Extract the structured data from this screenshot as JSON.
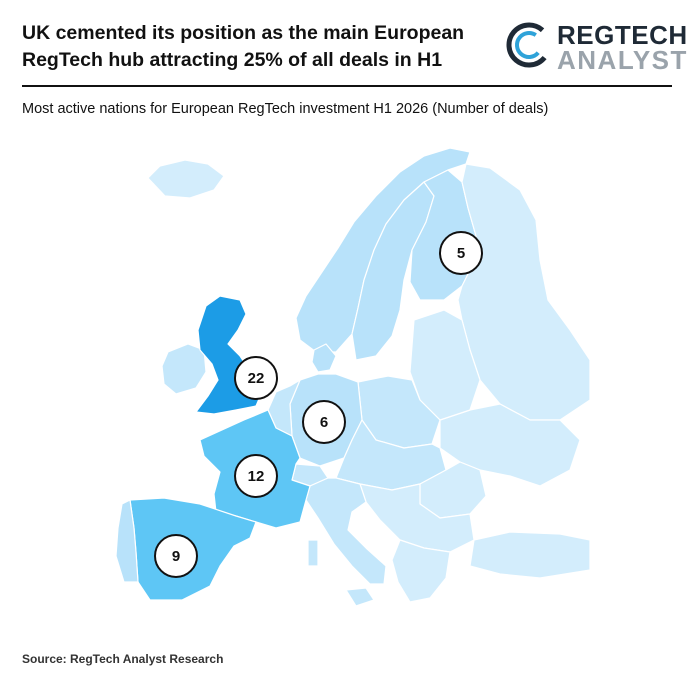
{
  "headline": {
    "line1": "UK cemented its position as the main European",
    "line2": "RegTech hub attracting 25% of all deals in H1"
  },
  "logo": {
    "word1": "REGTECH",
    "word2": "ANALYST",
    "icon": "c-ring-logo-icon",
    "colors": {
      "dark": "#1f2a36",
      "grey": "#9aa3ab",
      "accent": "#2fa3d9"
    }
  },
  "subtitle": "Most active nations for European RegTech investment H1 2026 (Number of deals)",
  "source": "Source: RegTech Analyst Research",
  "map": {
    "colors": {
      "base": "#d3edfc",
      "light": "#b8e2fa",
      "mid": "#5ec6f5",
      "uk": "#1c9ce6",
      "border": "#ffffff"
    },
    "countries": [
      {
        "name": "United Kingdom",
        "deals": "22"
      },
      {
        "name": "France",
        "deals": "12"
      },
      {
        "name": "Spain",
        "deals": "9"
      },
      {
        "name": "Germany",
        "deals": "6"
      },
      {
        "name": "Finland",
        "deals": "5"
      }
    ]
  }
}
